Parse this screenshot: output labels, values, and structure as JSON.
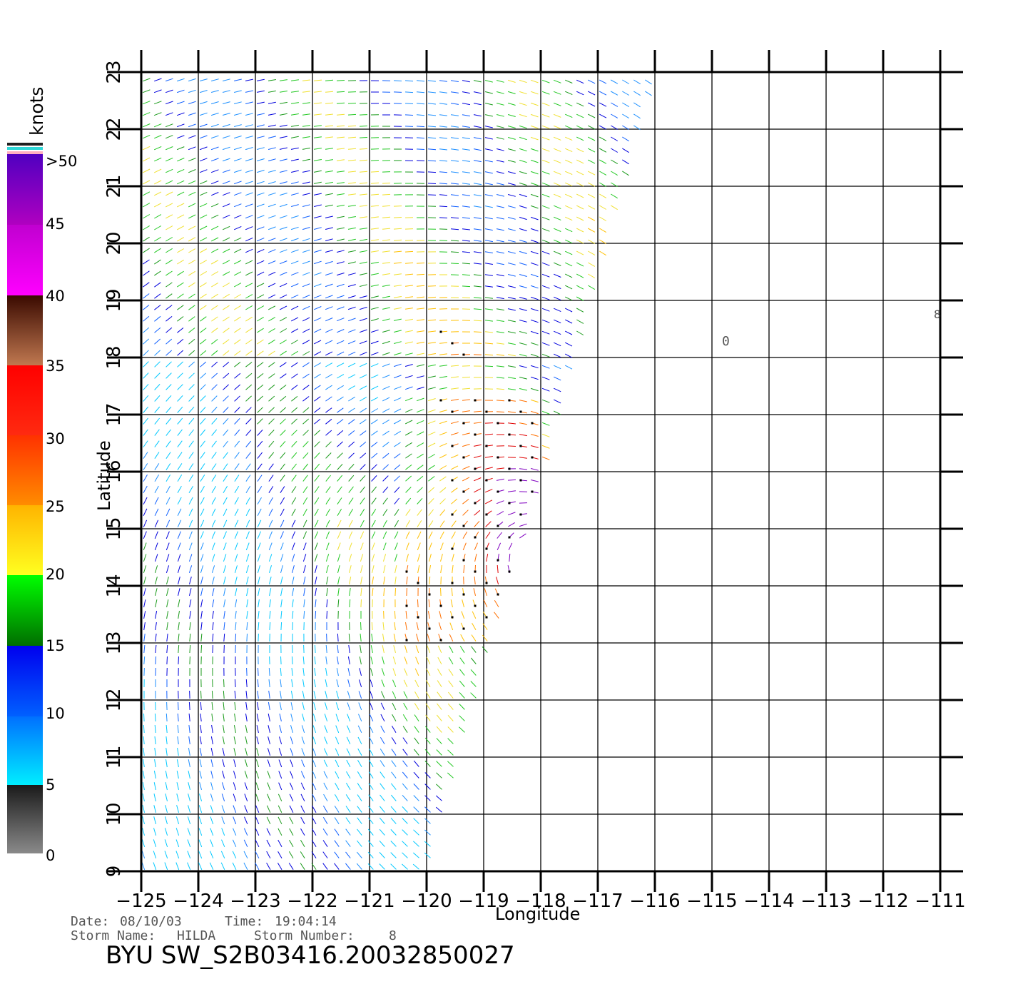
{
  "colorbar": {
    "unit": "knots",
    "ticks": [
      "0",
      "5",
      "10",
      "15",
      "20",
      "25",
      "30",
      "35",
      "40",
      "45",
      ">50"
    ],
    "colors": {
      "0-5": [
        "#8a8a8a",
        "#1a1a1a"
      ],
      "5-10": [
        "#00eeff",
        "#0070ff"
      ],
      "10-15": [
        "#0060ff",
        "#0000ee"
      ],
      "15-20": [
        "#006e00",
        "#00ff00"
      ],
      "20-25": [
        "#ffff20",
        "#ffb400"
      ],
      "25-30": [
        "#ff8c00",
        "#ff3200"
      ],
      "30-35": [
        "#ff2a10",
        "#ff0000"
      ],
      "35-40": [
        "#c07850",
        "#3a0a00"
      ],
      "40-45": [
        "#ff00ff",
        "#c000d0"
      ],
      "45-50": [
        "#b000c0",
        "#5000c0"
      ]
    }
  },
  "map": {
    "lon_range": [
      -125,
      -111
    ],
    "lat_range": [
      9,
      23
    ],
    "lon_ticks": [
      "−125",
      "−124",
      "−123",
      "−122",
      "−121",
      "−120",
      "−119",
      "−118",
      "−117",
      "−116",
      "−115",
      "−114",
      "−113",
      "−112",
      "−111"
    ],
    "lat_ticks": [
      "9",
      "10",
      "11",
      "12",
      "13",
      "14",
      "15",
      "16",
      "17",
      "18",
      "19",
      "20",
      "21",
      "22",
      "23"
    ],
    "xlabel": "Longitude",
    "ylabel": "Latitude",
    "island_marker": "0",
    "edge_marker": "8"
  },
  "info": {
    "date_label": "Date:",
    "date": "08/10/03",
    "time_label": "Time:",
    "time": "19:04:14",
    "storm_name_label": "Storm Name:",
    "storm_name": "HILDA",
    "storm_number_label": "Storm Number:",
    "storm_number": "8"
  },
  "product_title": "BYU SW_S2B03416.20032850027"
}
